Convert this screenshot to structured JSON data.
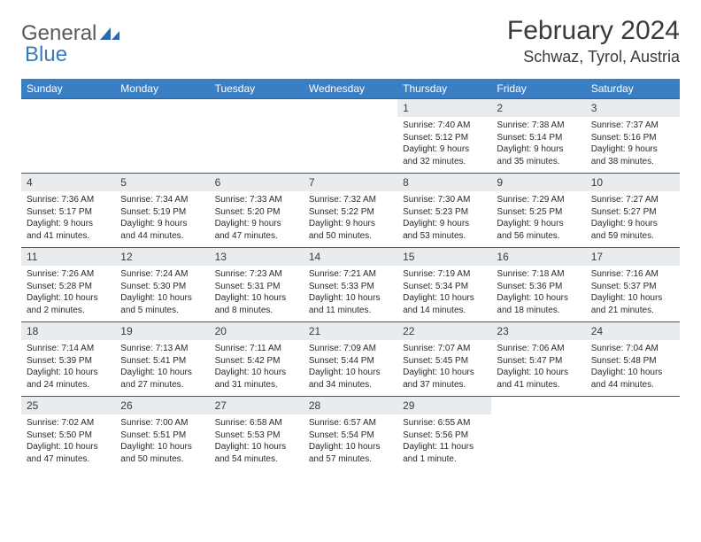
{
  "logo": {
    "part1": "General",
    "part2": "Blue"
  },
  "title": "February 2024",
  "location": "Schwaz, Tyrol, Austria",
  "colors": {
    "header_bg": "#3a7ec4",
    "header_text": "#ffffff",
    "cell_border": "#2f5f8f",
    "daynum_bg": "#e9ecee",
    "text": "#3a3a3a",
    "logo_gray": "#5a5a5a",
    "logo_blue": "#3a7ab8"
  },
  "weekdays": [
    "Sunday",
    "Monday",
    "Tuesday",
    "Wednesday",
    "Thursday",
    "Friday",
    "Saturday"
  ],
  "weeks": [
    [
      null,
      null,
      null,
      null,
      {
        "n": "1",
        "sr": "Sunrise: 7:40 AM",
        "ss": "Sunset: 5:12 PM",
        "d1": "Daylight: 9 hours",
        "d2": "and 32 minutes."
      },
      {
        "n": "2",
        "sr": "Sunrise: 7:38 AM",
        "ss": "Sunset: 5:14 PM",
        "d1": "Daylight: 9 hours",
        "d2": "and 35 minutes."
      },
      {
        "n": "3",
        "sr": "Sunrise: 7:37 AM",
        "ss": "Sunset: 5:16 PM",
        "d1": "Daylight: 9 hours",
        "d2": "and 38 minutes."
      }
    ],
    [
      {
        "n": "4",
        "sr": "Sunrise: 7:36 AM",
        "ss": "Sunset: 5:17 PM",
        "d1": "Daylight: 9 hours",
        "d2": "and 41 minutes."
      },
      {
        "n": "5",
        "sr": "Sunrise: 7:34 AM",
        "ss": "Sunset: 5:19 PM",
        "d1": "Daylight: 9 hours",
        "d2": "and 44 minutes."
      },
      {
        "n": "6",
        "sr": "Sunrise: 7:33 AM",
        "ss": "Sunset: 5:20 PM",
        "d1": "Daylight: 9 hours",
        "d2": "and 47 minutes."
      },
      {
        "n": "7",
        "sr": "Sunrise: 7:32 AM",
        "ss": "Sunset: 5:22 PM",
        "d1": "Daylight: 9 hours",
        "d2": "and 50 minutes."
      },
      {
        "n": "8",
        "sr": "Sunrise: 7:30 AM",
        "ss": "Sunset: 5:23 PM",
        "d1": "Daylight: 9 hours",
        "d2": "and 53 minutes."
      },
      {
        "n": "9",
        "sr": "Sunrise: 7:29 AM",
        "ss": "Sunset: 5:25 PM",
        "d1": "Daylight: 9 hours",
        "d2": "and 56 minutes."
      },
      {
        "n": "10",
        "sr": "Sunrise: 7:27 AM",
        "ss": "Sunset: 5:27 PM",
        "d1": "Daylight: 9 hours",
        "d2": "and 59 minutes."
      }
    ],
    [
      {
        "n": "11",
        "sr": "Sunrise: 7:26 AM",
        "ss": "Sunset: 5:28 PM",
        "d1": "Daylight: 10 hours",
        "d2": "and 2 minutes."
      },
      {
        "n": "12",
        "sr": "Sunrise: 7:24 AM",
        "ss": "Sunset: 5:30 PM",
        "d1": "Daylight: 10 hours",
        "d2": "and 5 minutes."
      },
      {
        "n": "13",
        "sr": "Sunrise: 7:23 AM",
        "ss": "Sunset: 5:31 PM",
        "d1": "Daylight: 10 hours",
        "d2": "and 8 minutes."
      },
      {
        "n": "14",
        "sr": "Sunrise: 7:21 AM",
        "ss": "Sunset: 5:33 PM",
        "d1": "Daylight: 10 hours",
        "d2": "and 11 minutes."
      },
      {
        "n": "15",
        "sr": "Sunrise: 7:19 AM",
        "ss": "Sunset: 5:34 PM",
        "d1": "Daylight: 10 hours",
        "d2": "and 14 minutes."
      },
      {
        "n": "16",
        "sr": "Sunrise: 7:18 AM",
        "ss": "Sunset: 5:36 PM",
        "d1": "Daylight: 10 hours",
        "d2": "and 18 minutes."
      },
      {
        "n": "17",
        "sr": "Sunrise: 7:16 AM",
        "ss": "Sunset: 5:37 PM",
        "d1": "Daylight: 10 hours",
        "d2": "and 21 minutes."
      }
    ],
    [
      {
        "n": "18",
        "sr": "Sunrise: 7:14 AM",
        "ss": "Sunset: 5:39 PM",
        "d1": "Daylight: 10 hours",
        "d2": "and 24 minutes."
      },
      {
        "n": "19",
        "sr": "Sunrise: 7:13 AM",
        "ss": "Sunset: 5:41 PM",
        "d1": "Daylight: 10 hours",
        "d2": "and 27 minutes."
      },
      {
        "n": "20",
        "sr": "Sunrise: 7:11 AM",
        "ss": "Sunset: 5:42 PM",
        "d1": "Daylight: 10 hours",
        "d2": "and 31 minutes."
      },
      {
        "n": "21",
        "sr": "Sunrise: 7:09 AM",
        "ss": "Sunset: 5:44 PM",
        "d1": "Daylight: 10 hours",
        "d2": "and 34 minutes."
      },
      {
        "n": "22",
        "sr": "Sunrise: 7:07 AM",
        "ss": "Sunset: 5:45 PM",
        "d1": "Daylight: 10 hours",
        "d2": "and 37 minutes."
      },
      {
        "n": "23",
        "sr": "Sunrise: 7:06 AM",
        "ss": "Sunset: 5:47 PM",
        "d1": "Daylight: 10 hours",
        "d2": "and 41 minutes."
      },
      {
        "n": "24",
        "sr": "Sunrise: 7:04 AM",
        "ss": "Sunset: 5:48 PM",
        "d1": "Daylight: 10 hours",
        "d2": "and 44 minutes."
      }
    ],
    [
      {
        "n": "25",
        "sr": "Sunrise: 7:02 AM",
        "ss": "Sunset: 5:50 PM",
        "d1": "Daylight: 10 hours",
        "d2": "and 47 minutes."
      },
      {
        "n": "26",
        "sr": "Sunrise: 7:00 AM",
        "ss": "Sunset: 5:51 PM",
        "d1": "Daylight: 10 hours",
        "d2": "and 50 minutes."
      },
      {
        "n": "27",
        "sr": "Sunrise: 6:58 AM",
        "ss": "Sunset: 5:53 PM",
        "d1": "Daylight: 10 hours",
        "d2": "and 54 minutes."
      },
      {
        "n": "28",
        "sr": "Sunrise: 6:57 AM",
        "ss": "Sunset: 5:54 PM",
        "d1": "Daylight: 10 hours",
        "d2": "and 57 minutes."
      },
      {
        "n": "29",
        "sr": "Sunrise: 6:55 AM",
        "ss": "Sunset: 5:56 PM",
        "d1": "Daylight: 11 hours",
        "d2": "and 1 minute."
      },
      null,
      null
    ]
  ]
}
